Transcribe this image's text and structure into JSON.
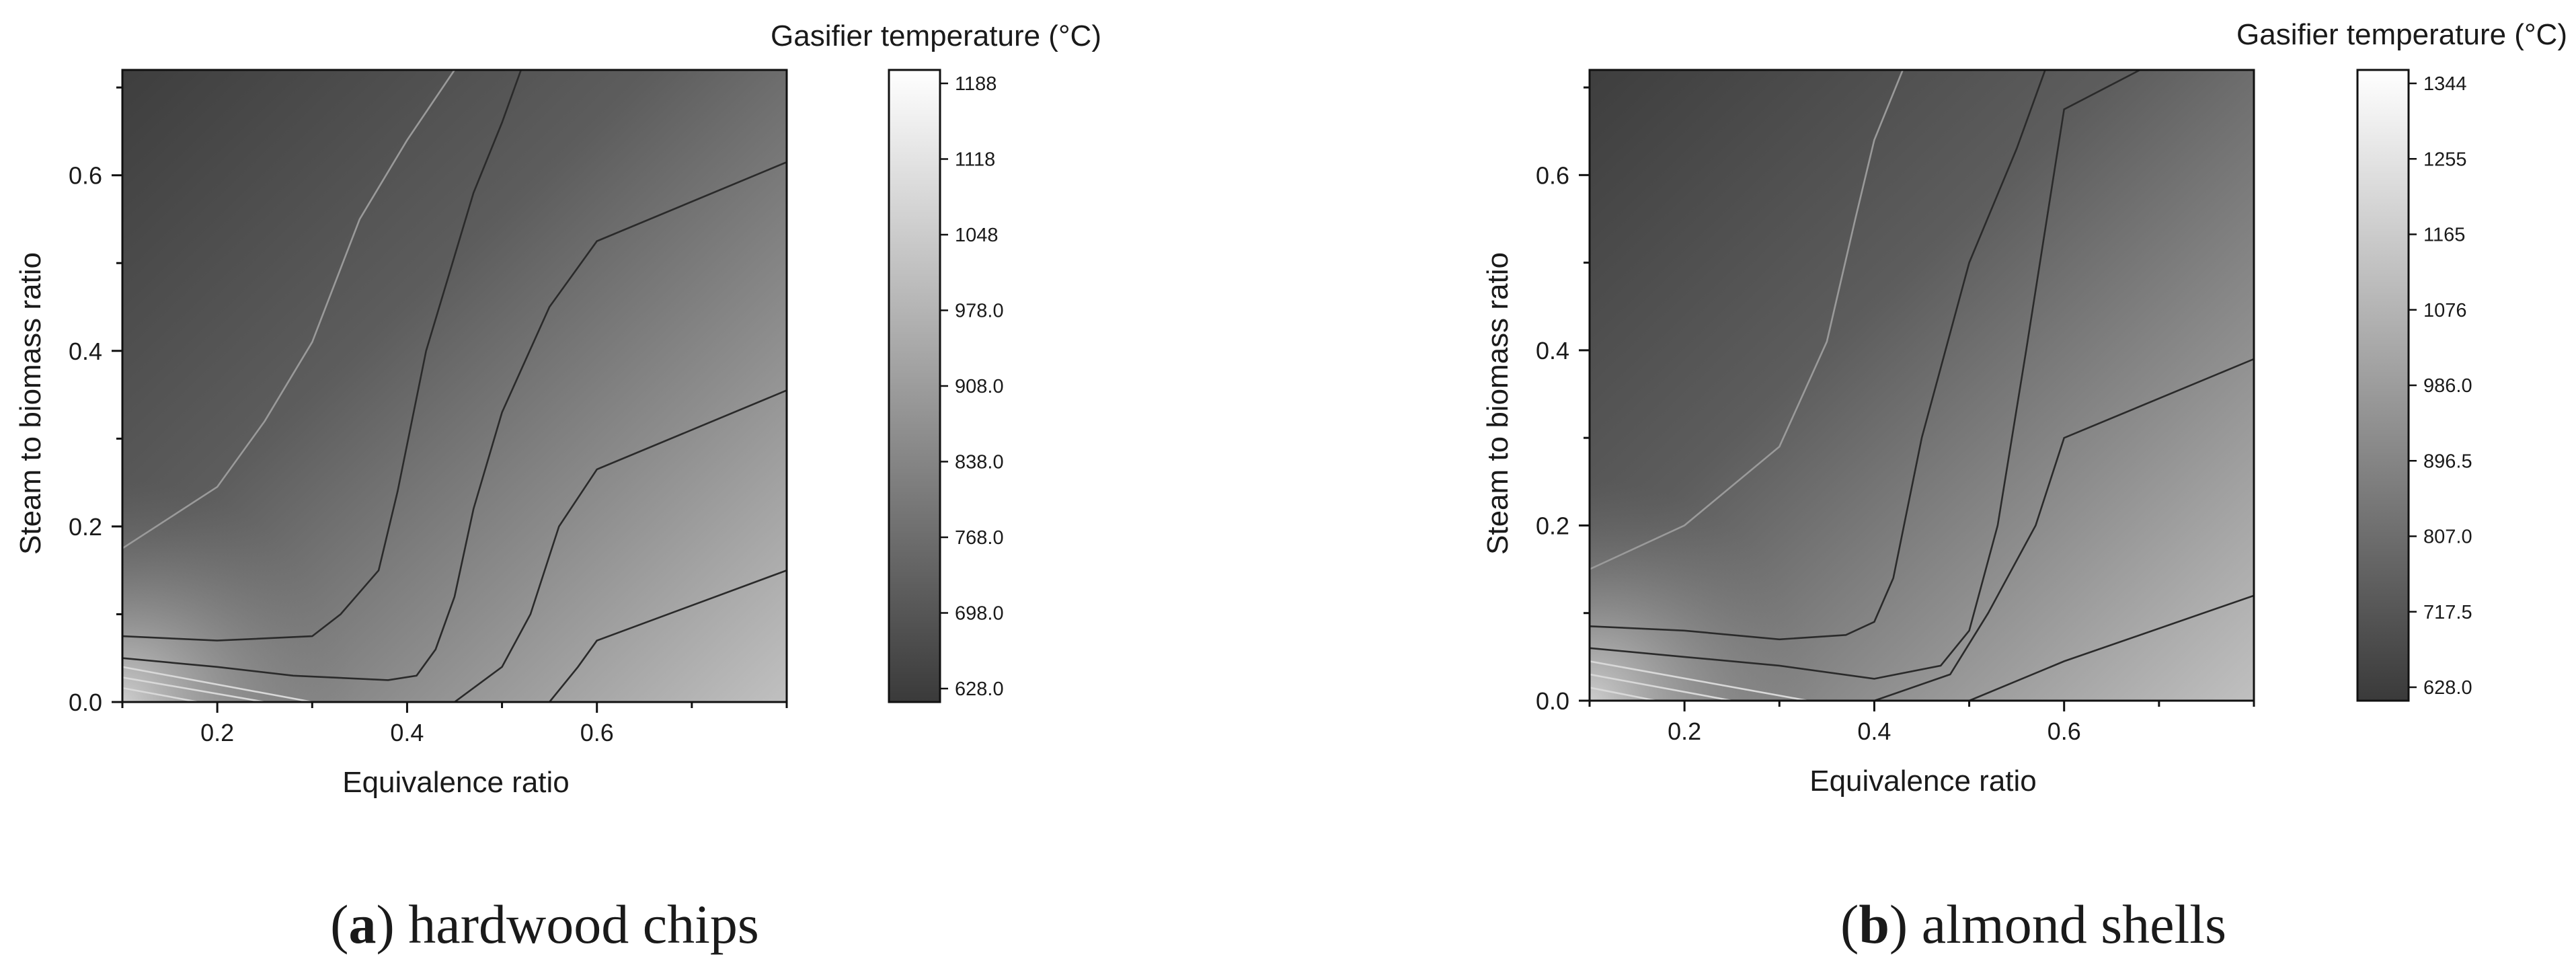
{
  "chart_data": [
    {
      "type": "contour",
      "panel_letter": "a",
      "caption": "hardwood chips",
      "xlabel": "Equivalence ratio",
      "ylabel": "Steam to biomass ratio",
      "xlim": [
        0.1,
        0.8
      ],
      "ylim": [
        0.0,
        0.72
      ],
      "xticks": [
        0.2,
        0.4,
        0.6
      ],
      "xtick_labels": [
        "0.2",
        "0.4",
        "0.6"
      ],
      "yticks": [
        0.0,
        0.2,
        0.4,
        0.6
      ],
      "ytick_labels": [
        "0.0",
        "0.2",
        "0.4",
        "0.6"
      ],
      "colorbar": {
        "title": "Gasifier temperature (°C)",
        "min": 628.0,
        "max": 1188,
        "tick_labels": [
          "628.0",
          "698.0",
          "768.0",
          "838.0",
          "908.0",
          "978.0",
          "1048",
          "1118",
          "1188"
        ],
        "colormap": [
          "#3a3a3a",
          "#ffffff"
        ]
      },
      "contours": [
        {
          "level": 698.0,
          "color": "#9a9a9a",
          "points": [
            [
              0.1,
              0.175
            ],
            [
              0.15,
              0.21
            ],
            [
              0.2,
              0.245
            ],
            [
              0.25,
              0.32
            ],
            [
              0.3,
              0.41
            ],
            [
              0.35,
              0.55
            ],
            [
              0.4,
              0.64
            ],
            [
              0.45,
              0.72
            ]
          ]
        },
        {
          "level": 768.0,
          "color": "#2a2a2a",
          "points": [
            [
              0.1,
              0.075
            ],
            [
              0.2,
              0.07
            ],
            [
              0.3,
              0.075
            ],
            [
              0.33,
              0.1
            ],
            [
              0.37,
              0.15
            ],
            [
              0.39,
              0.24
            ],
            [
              0.42,
              0.4
            ],
            [
              0.47,
              0.58
            ],
            [
              0.5,
              0.66
            ],
            [
              0.52,
              0.72
            ]
          ]
        },
        {
          "level": 838.0,
          "color": "#2a2a2a",
          "points": [
            [
              0.1,
              0.05
            ],
            [
              0.2,
              0.04
            ],
            [
              0.28,
              0.03
            ],
            [
              0.38,
              0.025
            ],
            [
              0.41,
              0.03
            ],
            [
              0.43,
              0.06
            ],
            [
              0.45,
              0.12
            ],
            [
              0.47,
              0.22
            ],
            [
              0.5,
              0.33
            ],
            [
              0.55,
              0.45
            ],
            [
              0.6,
              0.525
            ],
            [
              0.8,
              0.615
            ]
          ]
        },
        {
          "level": 908.0,
          "color": "#2a2a2a",
          "points": [
            [
              0.45,
              0.0
            ],
            [
              0.5,
              0.04
            ],
            [
              0.53,
              0.1
            ],
            [
              0.56,
              0.2
            ],
            [
              0.6,
              0.265
            ],
            [
              0.8,
              0.355
            ]
          ]
        },
        {
          "level": 978.0,
          "color": "#2a2a2a",
          "points": [
            [
              0.55,
              0.0
            ],
            [
              0.58,
              0.04
            ],
            [
              0.6,
              0.07
            ],
            [
              0.8,
              0.15
            ]
          ]
        },
        {
          "level": 1048,
          "color": "#d8d8d8",
          "points": [
            [
              0.1,
              0.04
            ],
            [
              0.3,
              0.0
            ]
          ]
        },
        {
          "level": 1118,
          "color": "#d8d8d8",
          "points": [
            [
              0.1,
              0.028
            ],
            [
              0.25,
              0.0
            ]
          ]
        },
        {
          "level": 1188,
          "color": "#d8d8d8",
          "points": [
            [
              0.1,
              0.016
            ],
            [
              0.18,
              0.0
            ]
          ]
        }
      ]
    },
    {
      "type": "contour",
      "panel_letter": "b",
      "caption": "almond shells",
      "xlabel": "Equivalence ratio",
      "ylabel": "Steam to biomass ratio",
      "xlim": [
        0.1,
        0.8
      ],
      "ylim": [
        0.0,
        0.72
      ],
      "xticks": [
        0.2,
        0.4,
        0.6
      ],
      "xtick_labels": [
        "0.2",
        "0.4",
        "0.6"
      ],
      "yticks": [
        0.0,
        0.2,
        0.4,
        0.6
      ],
      "ytick_labels": [
        "0.0",
        "0.2",
        "0.4",
        "0.6"
      ],
      "colorbar": {
        "title": "Gasifier temperature (°C)",
        "min": 628.0,
        "max": 1344,
        "tick_labels": [
          "628.0",
          "717.5",
          "807.0",
          "896.5",
          "986.0",
          "1076",
          "1165",
          "1255",
          "1344"
        ],
        "colormap": [
          "#3a3a3a",
          "#ffffff"
        ]
      },
      "contours": [
        {
          "level": 717.5,
          "color": "#9a9a9a",
          "points": [
            [
              0.1,
              0.15
            ],
            [
              0.2,
              0.2
            ],
            [
              0.3,
              0.29
            ],
            [
              0.35,
              0.41
            ],
            [
              0.38,
              0.55
            ],
            [
              0.4,
              0.64
            ],
            [
              0.43,
              0.72
            ]
          ]
        },
        {
          "level": 807.0,
          "color": "#2a2a2a",
          "points": [
            [
              0.1,
              0.085
            ],
            [
              0.2,
              0.08
            ],
            [
              0.3,
              0.07
            ],
            [
              0.37,
              0.075
            ],
            [
              0.4,
              0.09
            ],
            [
              0.42,
              0.14
            ],
            [
              0.45,
              0.3
            ],
            [
              0.5,
              0.5
            ],
            [
              0.55,
              0.63
            ],
            [
              0.58,
              0.72
            ]
          ]
        },
        {
          "level": 896.5,
          "color": "#2a2a2a",
          "points": [
            [
              0.1,
              0.06
            ],
            [
              0.2,
              0.05
            ],
            [
              0.3,
              0.04
            ],
            [
              0.4,
              0.025
            ],
            [
              0.47,
              0.04
            ],
            [
              0.5,
              0.08
            ],
            [
              0.53,
              0.2
            ],
            [
              0.56,
              0.4
            ],
            [
              0.6,
              0.675
            ],
            [
              0.68,
              0.72
            ]
          ]
        },
        {
          "level": 986.0,
          "color": "#2a2a2a",
          "points": [
            [
              0.4,
              0.0
            ],
            [
              0.48,
              0.03
            ],
            [
              0.52,
              0.1
            ],
            [
              0.57,
              0.2
            ],
            [
              0.6,
              0.3
            ],
            [
              0.8,
              0.39
            ]
          ]
        },
        {
          "level": 1076,
          "color": "#2a2a2a",
          "points": [
            [
              0.5,
              0.0
            ],
            [
              0.6,
              0.045
            ],
            [
              0.8,
              0.12
            ]
          ]
        },
        {
          "level": 1165,
          "color": "#d8d8d8",
          "points": [
            [
              0.1,
              0.045
            ],
            [
              0.33,
              0.0
            ]
          ]
        },
        {
          "level": 1255,
          "color": "#d8d8d8",
          "points": [
            [
              0.1,
              0.03
            ],
            [
              0.25,
              0.0
            ]
          ]
        },
        {
          "level": 1344,
          "color": "#d8d8d8",
          "points": [
            [
              0.1,
              0.015
            ],
            [
              0.17,
              0.0
            ]
          ]
        }
      ]
    }
  ]
}
